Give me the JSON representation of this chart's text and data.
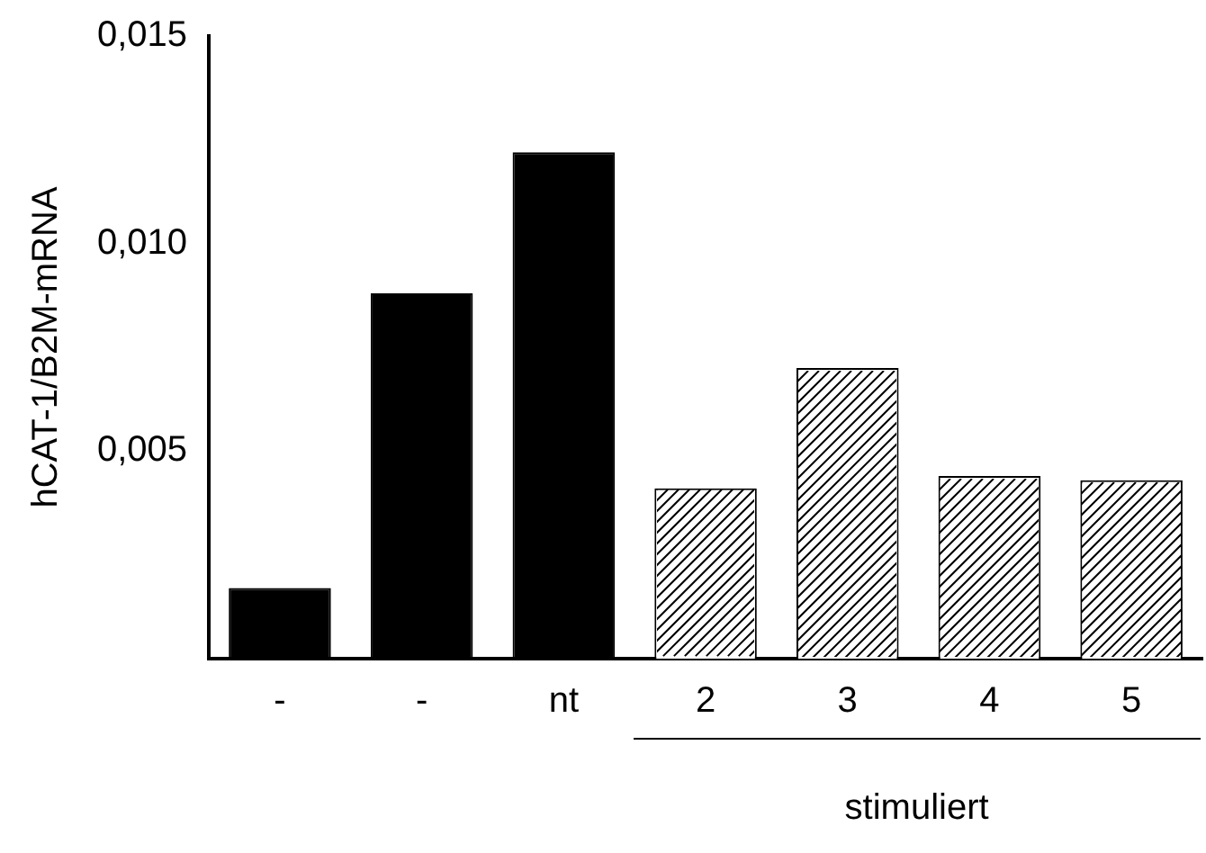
{
  "chart_data": {
    "type": "bar",
    "ylabel": "hCAT-1/B2M-mRNA",
    "categories": [
      "-",
      "-",
      "nt",
      "2",
      "3",
      "4",
      "5"
    ],
    "values": [
      0.0017,
      0.0088,
      0.0122,
      0.0041,
      0.007,
      0.0044,
      0.0043
    ],
    "colors": [
      "#000000",
      "#000000",
      "#000000",
      "#ffffff",
      "#ffffff",
      "#ffffff",
      "#ffffff"
    ],
    "ylim": [
      0,
      0.015
    ],
    "yticks": [
      {
        "value": 0.005,
        "label": "0,005"
      },
      {
        "value": 0.01,
        "label": "0,010"
      },
      {
        "value": 0.015,
        "label": "0,015"
      }
    ],
    "grid": false,
    "legend": false,
    "annotations": [
      "stimuliert"
    ]
  }
}
